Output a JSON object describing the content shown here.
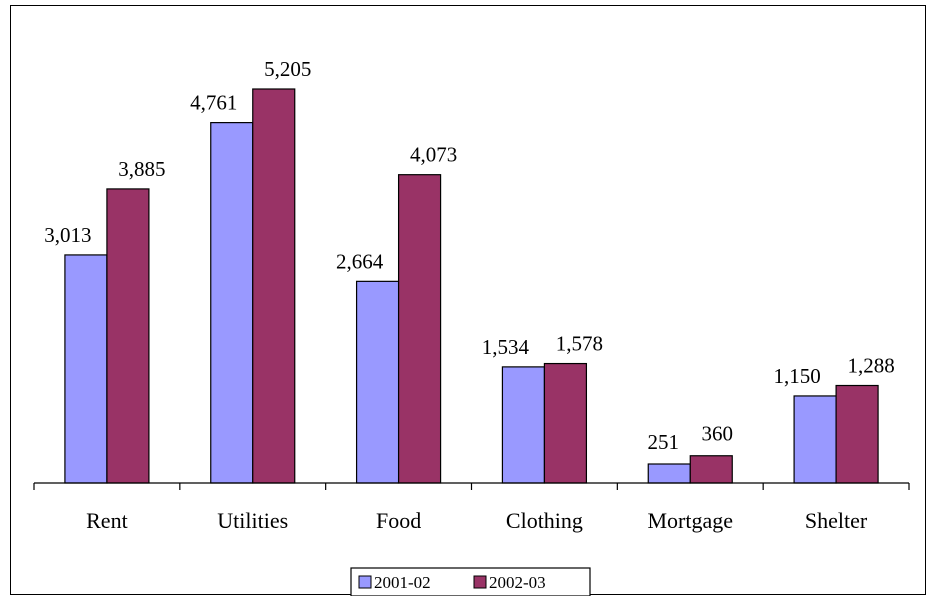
{
  "chart_data": {
    "type": "bar",
    "title": "",
    "xlabel": "",
    "ylabel": "",
    "categories": [
      "Rent",
      "Utilities",
      "Food",
      "Clothing",
      "Mortgage",
      "Shelter"
    ],
    "series": [
      {
        "name": "2001-02",
        "values": [
          3013,
          4761,
          2664,
          1534,
          251,
          1150
        ],
        "labels": [
          "3,013",
          "4,761",
          "2,664",
          "1,534",
          "251",
          "1,150"
        ],
        "color": "#9999ff"
      },
      {
        "name": "2002-03",
        "values": [
          3885,
          5205,
          4073,
          1578,
          360,
          1288
        ],
        "labels": [
          "3,885",
          "5,205",
          "4,073",
          "1,578",
          "360",
          "1,288"
        ],
        "color": "#993366"
      }
    ],
    "ylim": [
      0,
      5205
    ],
    "grid": false,
    "legend": "bottom"
  }
}
